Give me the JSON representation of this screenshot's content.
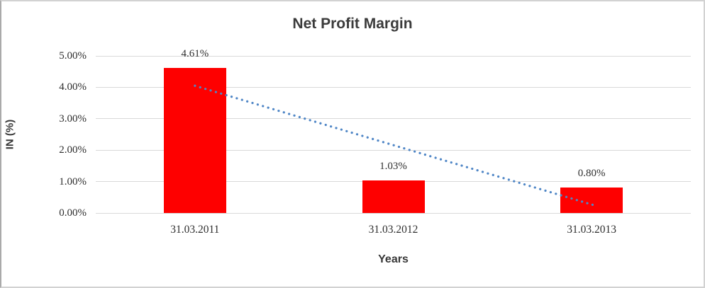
{
  "chart_data": {
    "type": "bar",
    "title": "Net Profit Margin",
    "xlabel": "Years",
    "ylabel": "IN (%)",
    "categories": [
      "31.03.2011",
      "31.03.2012",
      "31.03.2013"
    ],
    "values": [
      4.61,
      1.03,
      0.8
    ],
    "data_labels": [
      "4.61%",
      "1.03%",
      "0.80%"
    ],
    "ytick_labels": [
      "0.00%",
      "1.00%",
      "2.00%",
      "3.00%",
      "4.00%",
      "5.00%"
    ],
    "ytick_values": [
      0,
      1,
      2,
      3,
      4,
      5
    ],
    "ylim": [
      0,
      5
    ],
    "grid": true,
    "legend": false,
    "bar_color": "#fe0000",
    "gridline_color": "#d9d9d9",
    "title_color": "#3b3b3b",
    "trendline": {
      "type": "linear",
      "style": "dotted",
      "color": "#4f86c6",
      "start_value": 4.05,
      "end_value": 0.23
    }
  }
}
